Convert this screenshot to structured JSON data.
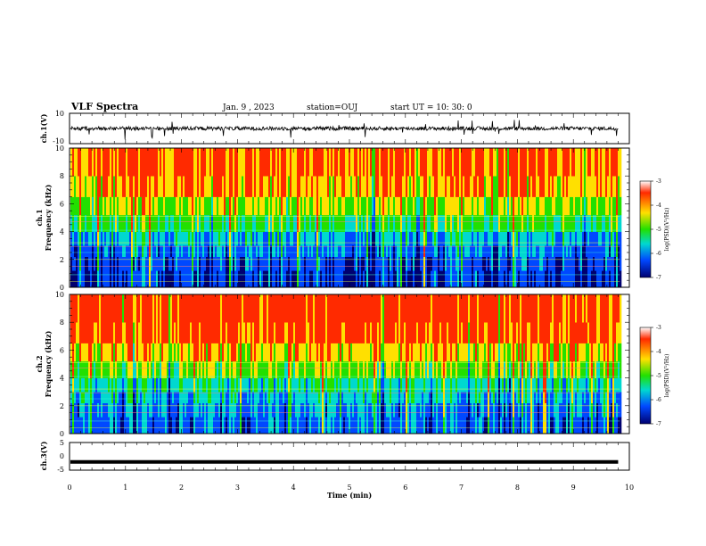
{
  "header": {
    "title": "VLF Spectra",
    "date": "Jan. 9 , 2023",
    "station": "station=OUJ",
    "start": "start UT = 10: 30: 0"
  },
  "chart_data": [
    {
      "type": "line",
      "ylabel": "ch.1(V)",
      "ylim": [
        -10,
        10
      ],
      "yticks": [
        "10",
        "-10"
      ],
      "xlim": [
        0,
        10
      ],
      "description_values": {
        "baseline": 0,
        "noise_amplitude": 2.5,
        "ends_at": 9.8
      }
    },
    {
      "type": "heatmap",
      "ylabel_line1": "ch.1",
      "ylabel_line2": "Frequency (kHz)",
      "ylim": [
        0,
        10
      ],
      "yticks": [
        "0",
        "2",
        "4",
        "6",
        "8",
        "10"
      ],
      "xlim": [
        0,
        10
      ],
      "colorbar": {
        "label": "log(PSD)(V²/Hz)",
        "range": [
          -7,
          -3
        ],
        "ticks": [
          "-3",
          "-4",
          "-5",
          "-6",
          "-7"
        ]
      }
    },
    {
      "type": "heatmap",
      "ylabel_line1": "ch.2",
      "ylabel_line2": "Frequency (kHz)",
      "ylim": [
        0,
        10
      ],
      "yticks": [
        "0",
        "2",
        "4",
        "6",
        "8",
        "10"
      ],
      "xlim": [
        0,
        10
      ],
      "colorbar": {
        "label": "log(PSD)(V²/Hz)",
        "range": [
          -7,
          -3
        ],
        "ticks": [
          "-3",
          "-4",
          "-5",
          "-6",
          "-7"
        ]
      }
    },
    {
      "type": "line",
      "ylabel": "ch.3(V)",
      "ylim": [
        -5,
        5
      ],
      "yticks": [
        "5",
        "0",
        "-5"
      ],
      "xlim": [
        0,
        10
      ],
      "values": {
        "constant": -2.0,
        "ends_at": 9.8
      }
    }
  ],
  "xaxis": {
    "label": "Time (min)",
    "ticks": [
      "0",
      "1",
      "2",
      "3",
      "4",
      "5",
      "6",
      "7",
      "8",
      "9",
      "10"
    ]
  },
  "colors": {
    "high": "#ff2a00",
    "mid_high": "#ffe000",
    "mid": "#22e000",
    "mid_low": "#00d8d0",
    "low": "#0048ff",
    "lowest": "#000070"
  }
}
